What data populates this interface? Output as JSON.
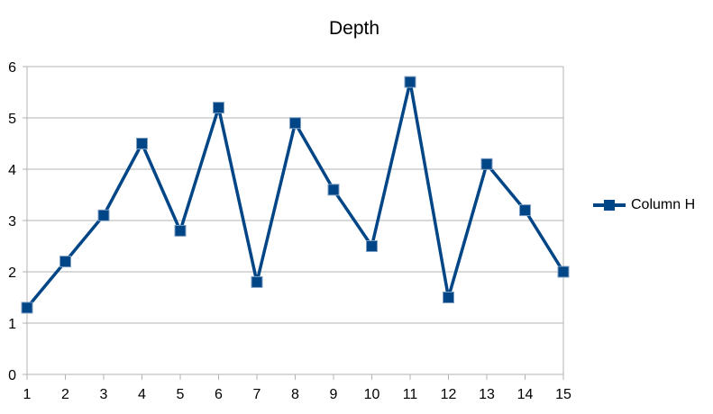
{
  "chart_data": {
    "type": "line",
    "title": "Depth",
    "xlabel": "",
    "ylabel": "",
    "x": [
      1,
      2,
      3,
      4,
      5,
      6,
      7,
      8,
      9,
      10,
      11,
      12,
      13,
      14,
      15
    ],
    "ylim": [
      0,
      6
    ],
    "yticks": [
      0,
      1,
      2,
      3,
      4,
      5,
      6
    ],
    "grid": true,
    "legend_position": "right",
    "series": [
      {
        "name": "Column H",
        "color": "#004586",
        "marker": "square",
        "values": [
          1.3,
          2.2,
          3.1,
          4.5,
          2.8,
          5.2,
          1.8,
          4.9,
          3.6,
          2.5,
          5.7,
          1.5,
          4.1,
          3.2,
          2.0
        ]
      }
    ]
  }
}
